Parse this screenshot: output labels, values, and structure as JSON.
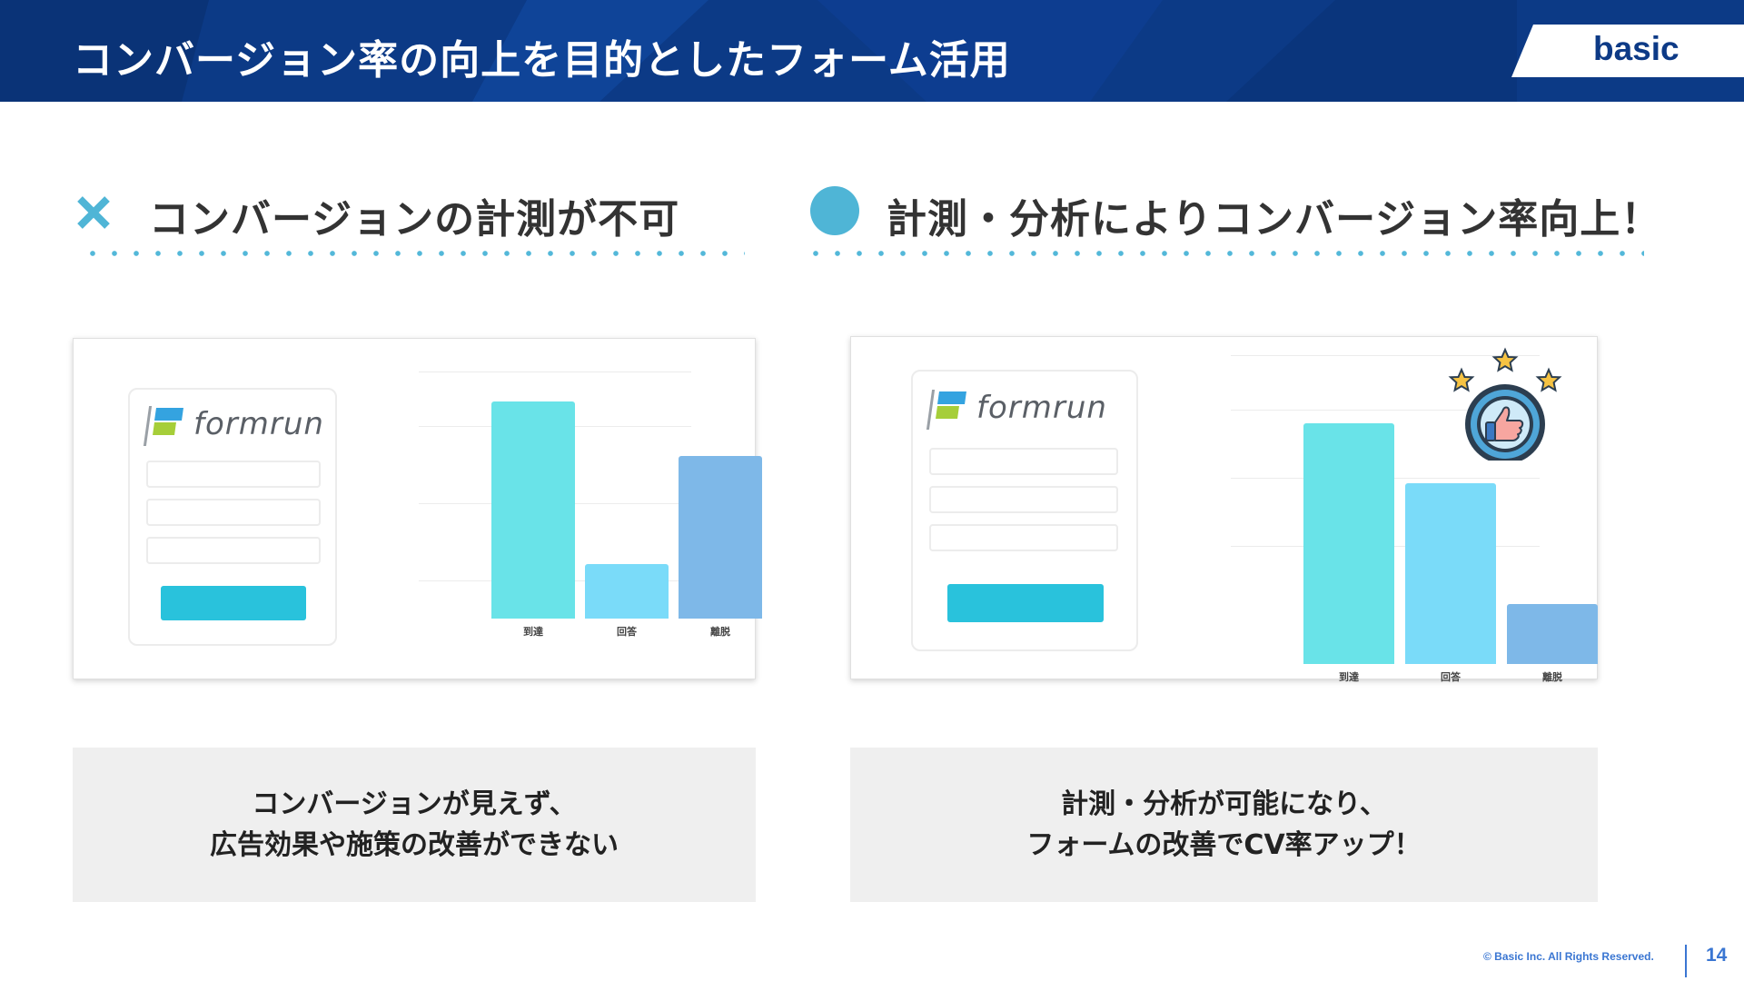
{
  "header": {
    "title": "コンバージョン率の向上を目的としたフォーム活用",
    "logo": "basic"
  },
  "left": {
    "heading": "コンバージョンの計測が不可",
    "mark_icon": "cross-icon",
    "app_logo": "formrun",
    "chart_data": {
      "type": "bar",
      "categories": [
        "到達",
        "回答",
        "離脱"
      ],
      "values": [
        100,
        25,
        75
      ],
      "ylim": [
        0,
        120
      ],
      "colors": [
        "#69e3e8",
        "#7adbf9",
        "#7eb8e8"
      ]
    },
    "caption_lines": [
      "コンバージョンが見えず、",
      "広告効果や施策の改善ができない"
    ]
  },
  "right": {
    "heading": "計測・分析によりコンバージョン率向上！",
    "mark_icon": "circle-icon",
    "app_logo": "formrun",
    "badge_icon": "thumbs-up-stars-icon",
    "chart_data": {
      "type": "bar",
      "categories": [
        "到達",
        "回答",
        "離脱"
      ],
      "values": [
        100,
        75,
        25
      ],
      "ylim": [
        0,
        130
      ],
      "colors": [
        "#69e3e8",
        "#7adbf9",
        "#7eb8e8"
      ]
    },
    "caption_lines": [
      "計測・分析が可能になり、",
      "フォームの改善でCV率アップ！"
    ]
  },
  "footer": {
    "copyright": "© Basic Inc. All Rights Reserved.",
    "page_number": "14"
  },
  "colors": {
    "header_bg": "#0c3a86",
    "accent": "#53b8d9",
    "footer_text": "#3a76d2"
  }
}
